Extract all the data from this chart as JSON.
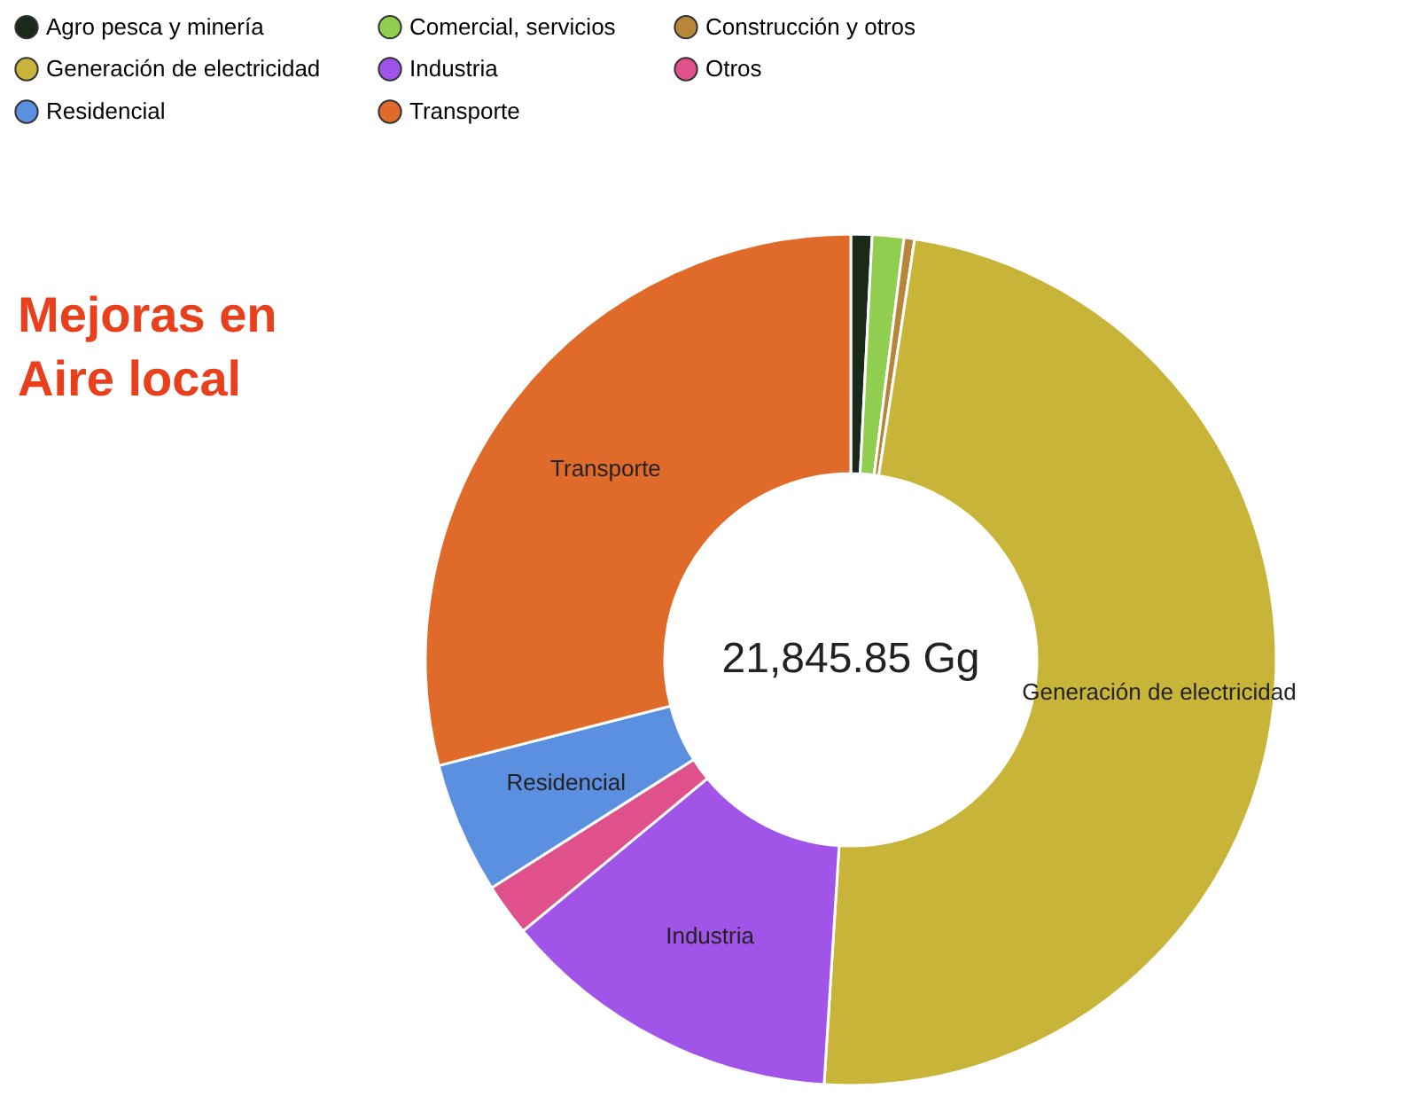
{
  "chart_data": {
    "type": "donut",
    "title": "Mejoras en Aire local",
    "categories": [
      "Agro pesca y minería",
      "Comercial, servicios",
      "Construcción y otros",
      "Generación de electricidad",
      "Industria",
      "Otros",
      "Residencial",
      "Transporte"
    ],
    "values": [
      0.8,
      1.2,
      0.4,
      48.6,
      13,
      2,
      5,
      29
    ],
    "colors": [
      "#1a2a1a",
      "#8fce4e",
      "#b8863a",
      "#c9b43a",
      "#a155e8",
      "#e0508a",
      "#5b8fe0",
      "#e06a2a"
    ],
    "legend": "top",
    "annotations": [
      {
        "text": "21,845.85 Gg"
      },
      {
        "text": "Transporte",
        "x": "Transporte"
      },
      {
        "text": "Residencial",
        "x": "Residencial"
      },
      {
        "text": "Industria",
        "x": "Industria"
      },
      {
        "text": "Generación de electricidad",
        "x": "Generación de electricidad"
      }
    ]
  }
}
